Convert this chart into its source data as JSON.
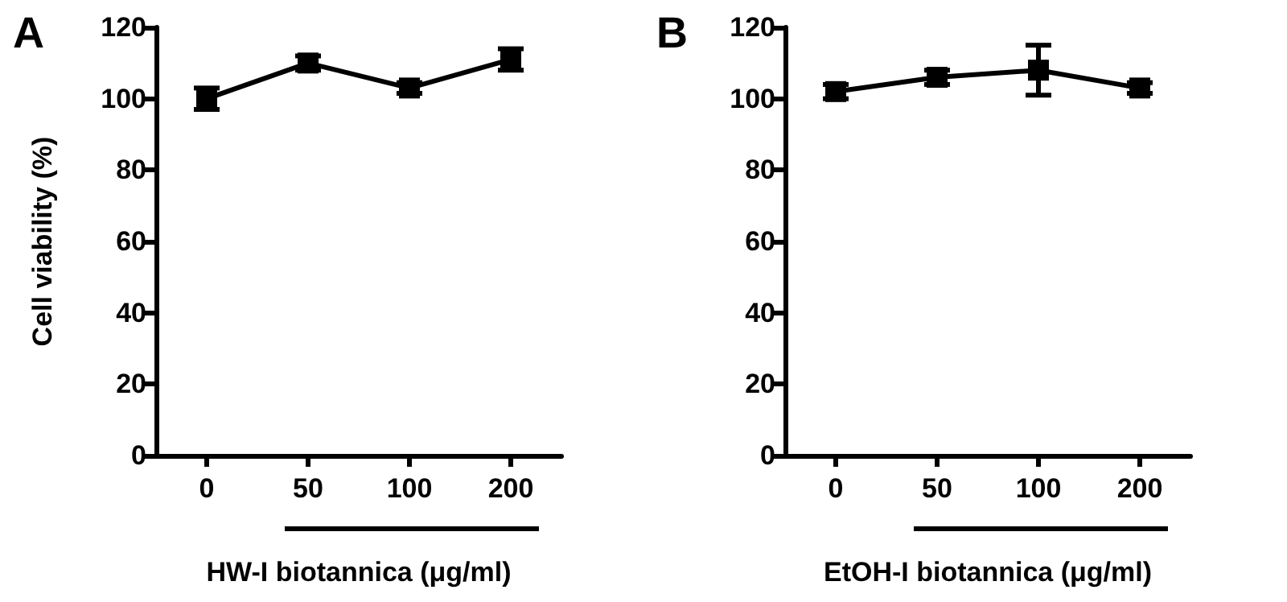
{
  "chart_data": [
    {
      "type": "line",
      "title": "A",
      "xlabel": "HW-I biotannica (μg/ml)",
      "ylabel": "Cell viability (%)",
      "categories": [
        "0",
        "50",
        "100",
        "200"
      ],
      "series": [
        {
          "color": "#000000",
          "values": [
            100,
            110,
            103,
            111
          ],
          "errors": [
            3,
            2,
            1.5,
            3
          ]
        }
      ],
      "ylim": [
        0,
        120
      ],
      "yticks": [
        0,
        20,
        40,
        60,
        80,
        100,
        120
      ],
      "grid": false,
      "marker": "square",
      "line_style": "solid"
    },
    {
      "type": "line",
      "title": "B",
      "xlabel": "EtOH-I biotannica (μg/ml)",
      "categories": [
        "0",
        "50",
        "100",
        "200"
      ],
      "series": [
        {
          "color": "#000000",
          "values": [
            102,
            106,
            108,
            103
          ],
          "errors": [
            2,
            2,
            7,
            1.5
          ]
        }
      ],
      "ylim": [
        0,
        120
      ],
      "yticks": [
        0,
        20,
        40,
        60,
        80,
        100,
        120
      ],
      "grid": false,
      "marker": "square",
      "line_style": "solid"
    }
  ]
}
